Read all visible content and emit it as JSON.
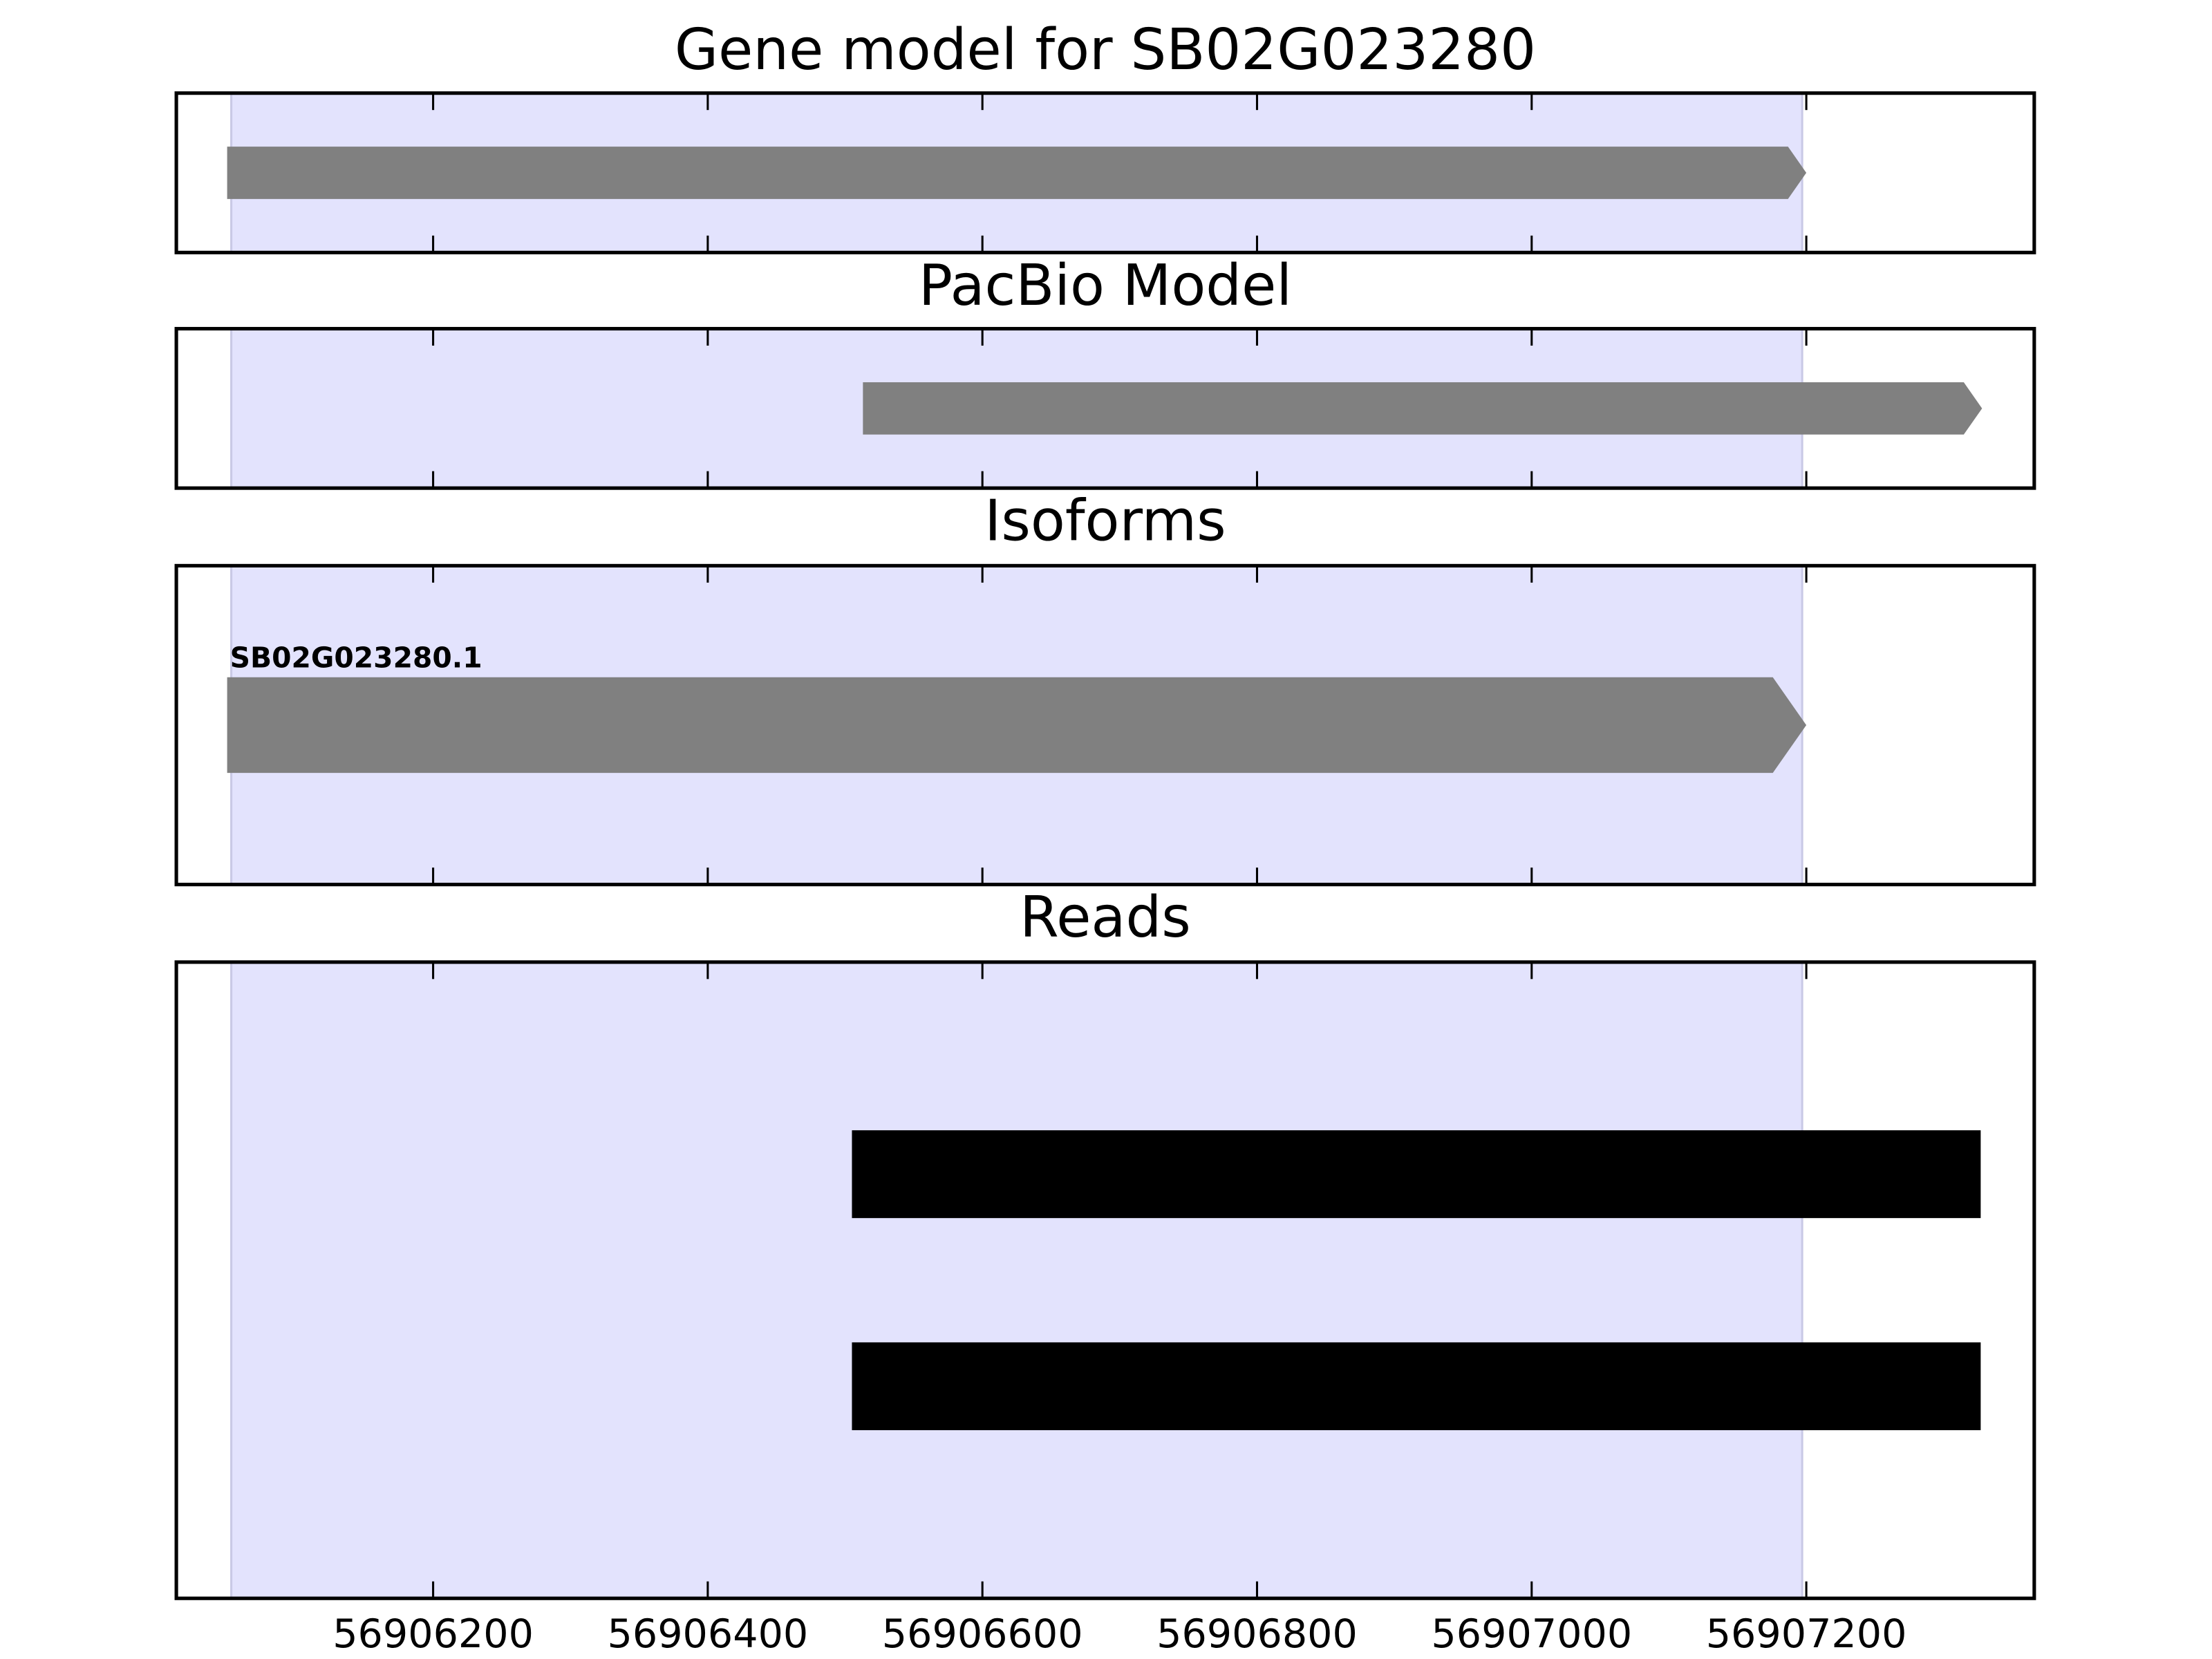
{
  "chart_data": [
    {
      "type": "gene",
      "title": "Gene model for SB02G023280",
      "xlim": [
        56906013,
        56907366
      ],
      "xticks": [
        56906200,
        56906400,
        56906600,
        56906800,
        56907000,
        56907200
      ],
      "highlight": [
        56906053,
        56907197
      ],
      "highlight_color": "#e3e3fd",
      "color": "#808080",
      "features": [
        {
          "start": 56906050,
          "end": 56907200
        }
      ]
    },
    {
      "type": "gene",
      "title": "PacBio Model",
      "xlim": [
        56906013,
        56907366
      ],
      "xticks": [
        56906200,
        56906400,
        56906600,
        56906800,
        56907000,
        56907200
      ],
      "highlight": [
        56906053,
        56907197
      ],
      "highlight_color": "#e3e3fd",
      "color": "#808080",
      "features": [
        {
          "start": 56906513,
          "end": 56907328
        }
      ]
    },
    {
      "type": "gene",
      "title": "Isoforms",
      "xlim": [
        56906013,
        56907366
      ],
      "xticks": [
        56906200,
        56906400,
        56906600,
        56906800,
        56907000,
        56907200
      ],
      "highlight": [
        56906053,
        56907197
      ],
      "highlight_color": "#e3e3fd",
      "color": "#808080",
      "features": [
        {
          "label": "SB02G023280.1",
          "start": 56906050,
          "end": 56907200
        }
      ]
    },
    {
      "type": "reads",
      "title": "Reads",
      "xlim": [
        56906013,
        56907366
      ],
      "xticks": [
        56906200,
        56906400,
        56906600,
        56906800,
        56907000,
        56907200
      ],
      "highlight": [
        56906053,
        56907197
      ],
      "highlight_color": "#e3e3fd",
      "color": "#000000",
      "features": [
        {
          "start": 56906505,
          "end": 56907327
        },
        {
          "start": 56906505,
          "end": 56907327
        }
      ]
    }
  ]
}
